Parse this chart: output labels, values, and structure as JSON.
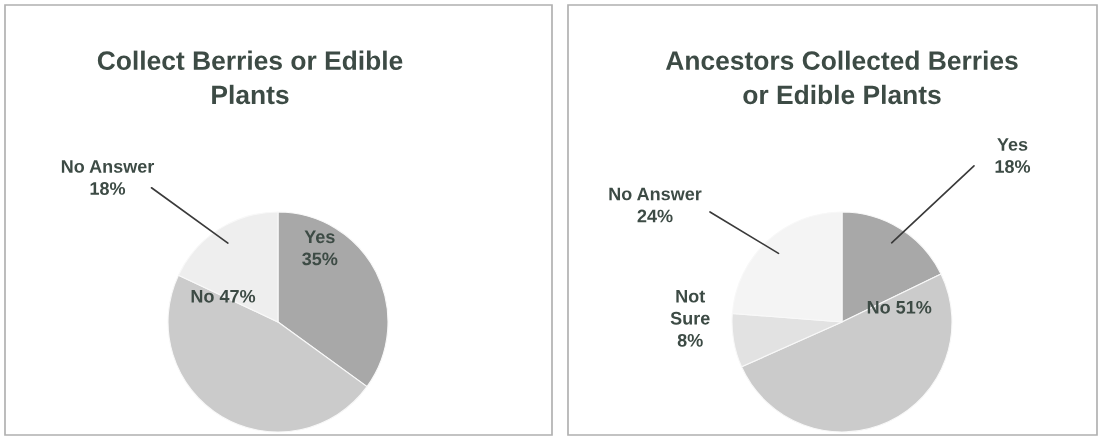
{
  "chart_data": [
    {
      "type": "pie",
      "title": "Collect Berries or Edible Plants",
      "categories": [
        "Yes",
        "No",
        "No Answer"
      ],
      "values": [
        35,
        47,
        18
      ],
      "value_labels": [
        "35%",
        "47%",
        "18%"
      ],
      "colors": [
        "#a8a8a8",
        "#cbcbcb",
        "#eeeeee"
      ],
      "legend": false
    },
    {
      "type": "pie",
      "title": "Ancestors Collected Berries or Edible Plants",
      "categories": [
        "Yes",
        "No",
        "Not Sure",
        "No Answer"
      ],
      "values": [
        18,
        51,
        8,
        24
      ],
      "value_labels": [
        "18%",
        "51%",
        "8%",
        "24%"
      ],
      "colors": [
        "#a8a8a8",
        "#cbcbcb",
        "#e2e2e2",
        "#f4f4f4"
      ],
      "legend": false
    }
  ]
}
